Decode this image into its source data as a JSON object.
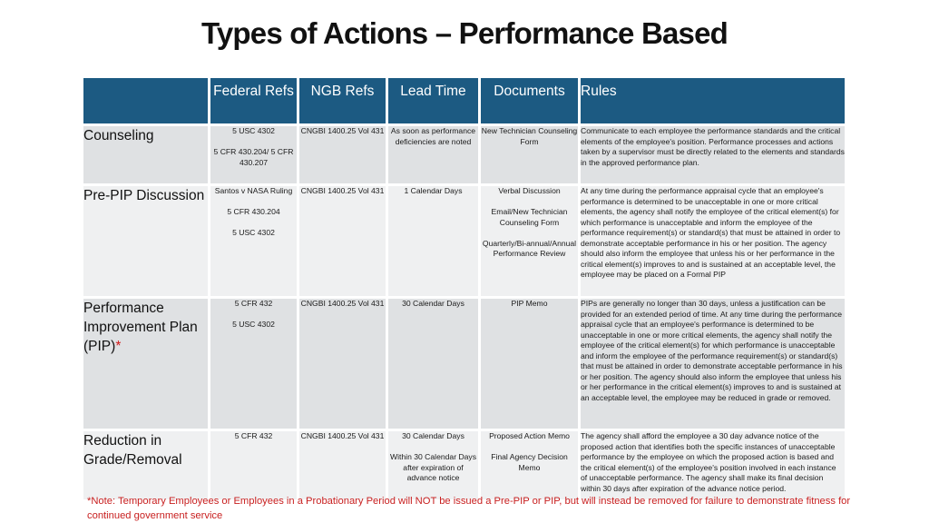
{
  "title": "Types of Actions – Performance Based",
  "headers": {
    "federal": "Federal Refs",
    "ngb": "NGB Refs",
    "lead": "Lead Time",
    "docs": "Documents",
    "rules": "Rules"
  },
  "rows": [
    {
      "type": "Counseling",
      "federal": [
        "5 USC 4302",
        "5 CFR 430.204/ 5 CFR 430.207"
      ],
      "ngb": [
        "CNGBI 1400.25 Vol 431"
      ],
      "lead": [
        "As soon as performance deficiencies are noted"
      ],
      "docs": [
        "New Technician Counseling Form"
      ],
      "rules": "Communicate to each employee the performance standards and the critical elements of the employee's position. Performance processes and actions taken by a supervisor must be directly related to the elements and standards in the approved performance plan."
    },
    {
      "type": "Pre-PIP Discussion",
      "federal": [
        "Santos v NASA Ruling",
        "5 CFR 430.204",
        "5 USC 4302"
      ],
      "ngb": [
        "CNGBI 1400.25 Vol 431"
      ],
      "lead": [
        "1 Calendar Days"
      ],
      "docs": [
        "Verbal Discussion",
        "Email/New Technician Counseling Form",
        "Quarterly/Bi-annual/Annual Performance Review"
      ],
      "rules": "At any time during the performance appraisal cycle that an employee's performance is determined to be unacceptable in one or more critical elements, the agency shall notify the employee of the critical element(s) for which performance is unacceptable and inform the employee of the performance requirement(s) or standard(s) that must be attained in order to demonstrate acceptable performance in his or her position. The agency should also inform the employee that unless his or her performance in the critical element(s) improves to and is sustained at an acceptable level, the employee may be placed on a Formal PIP"
    },
    {
      "type": "Performance Improvement Plan (PIP)",
      "asterisk": "*",
      "federal": [
        "5 CFR 432",
        "5 USC 4302"
      ],
      "ngb": [
        "CNGBI 1400.25 Vol 431"
      ],
      "lead": [
        "30 Calendar Days"
      ],
      "docs": [
        "PIP Memo"
      ],
      "rules": "PIPs are generally no longer than 30 days, unless a justification can be provided for an extended period of time. At any time during the performance appraisal cycle that an employee's performance is determined to be unacceptable in one or more critical elements, the agency shall notify the employee of the critical element(s) for which performance is unacceptable and inform the employee of the performance requirement(s) or standard(s) that must be attained in order to demonstrate acceptable performance in his or her position. The agency should also inform the employee that unless his or her performance in the critical element(s) improves to and is sustained at an acceptable level, the employee may be reduced in grade or removed."
    },
    {
      "type": "Reduction in Grade/Removal",
      "federal": [
        "5 CFR 432"
      ],
      "ngb": [
        "CNGBI 1400.25 Vol 431"
      ],
      "lead": [
        "30 Calendar Days",
        "Within 30 Calendar Days after expiration of advance notice"
      ],
      "docs": [
        "Proposed Action Memo",
        "Final Agency Decision Memo"
      ],
      "rules": "The agency shall afford the employee a 30 day advance notice of the proposed action that identifies both the specific instances of unacceptable performance by the employee on which the proposed action is based and the critical element(s) of the employee's position involved in each instance of unacceptable performance. The agency shall make its final decision within 30 days after expiration of the advance notice period."
    }
  ],
  "note": "*Note: Temporary Employees or Employees in a Probationary Period will NOT be issued a Pre-PIP or PIP, but will instead be removed for failure to demonstrate fitness for continued government service",
  "colors": {
    "header_bg": "#1c5a82",
    "row_dark": "#dfe1e3",
    "row_light": "#eff0f1",
    "note": "#c82020"
  }
}
